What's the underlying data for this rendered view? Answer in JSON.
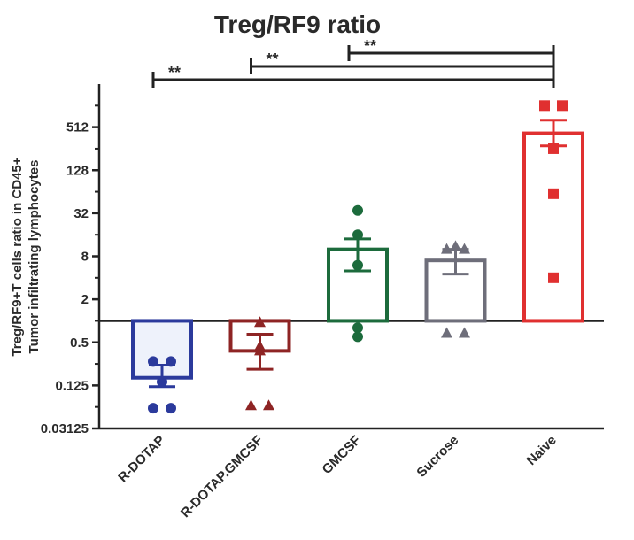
{
  "chart_data": {
    "type": "bar",
    "title": "Treg/RF9 ratio",
    "ylabel_lines": [
      "Treg/RF9+T cells ratio in CD45+",
      "Tumor infiltrating lymphocytes"
    ],
    "xlabel": "",
    "y_scale": "log2",
    "ylim": [
      0.03125,
      2048
    ],
    "baseline": 1,
    "y_ticks": [
      0.03125,
      0.125,
      0.5,
      2,
      8,
      32,
      128,
      512
    ],
    "y_tick_labels": [
      "0.03125",
      "0.125",
      "0.5",
      "2",
      "8",
      "32",
      "128",
      "512"
    ],
    "categories": [
      "R-DOTAP",
      "R-DOTAP.GMCSF",
      "GMCSF",
      "Sucrose",
      "Naive"
    ],
    "series": [
      {
        "values": [
          0.16,
          0.38,
          10,
          7,
          420
        ],
        "sem_low": [
          0.12,
          0.21,
          5.0,
          4.5,
          280
        ],
        "sem_high": [
          0.24,
          0.65,
          14,
          10,
          640
        ],
        "colors": [
          "#2b3a9c",
          "#8e2424",
          "#1c6b3c",
          "#6e6e7a",
          "#e03030"
        ],
        "fills": [
          "#eef2fb",
          "#ffffff",
          "#ffffff",
          "#ffffff",
          "#ffffff"
        ],
        "markers": [
          "circle",
          "triangle",
          "circle",
          "triangle",
          "square"
        ],
        "points": [
          [
            0.27,
            0.27,
            0.14,
            0.06,
            0.06
          ],
          [
            0.95,
            0.44,
            0.38,
            0.065,
            0.065
          ],
          [
            35,
            16,
            6,
            0.8,
            0.6
          ],
          [
            11,
            10,
            10,
            0.67,
            0.67
          ],
          [
            1024,
            1024,
            256,
            60,
            4
          ]
        ]
      }
    ],
    "significance": [
      {
        "from": "R-DOTAP",
        "to": "Naive",
        "label": "**"
      },
      {
        "from": "R-DOTAP.GMCSF",
        "to": "Naive",
        "label": "**"
      },
      {
        "from": "GMCSF",
        "to": "Naive",
        "label": "**"
      }
    ]
  }
}
